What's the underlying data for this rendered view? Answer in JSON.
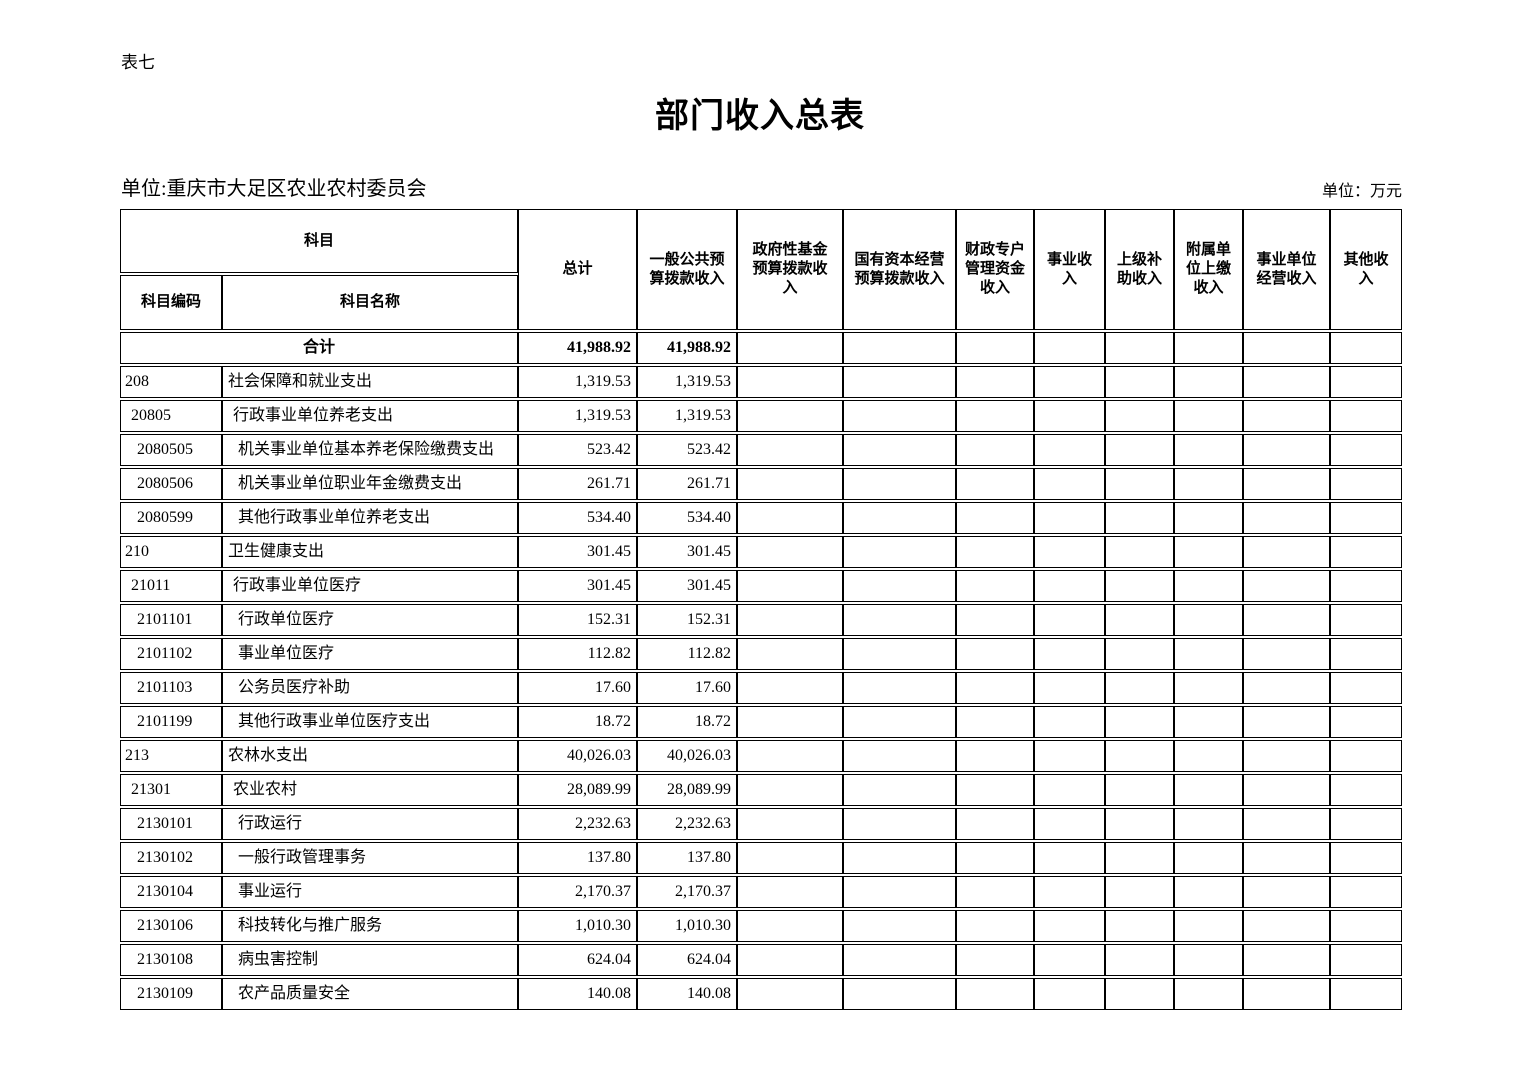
{
  "page": {
    "table_label": "表七",
    "title": "部门收入总表",
    "unit_left": "单位:重庆市大足区农业农村委员会",
    "unit_right": "单位：万元"
  },
  "table": {
    "header": {
      "subject": "科目",
      "subject_code": "科目编码",
      "subject_name": "科目名称",
      "total": "总计",
      "cols": [
        "一般公共预算拨款收入",
        "政府性基金预算拨款收入",
        "国有资本经营预算拨款收入",
        "财政专户管理资金收入",
        "事业收入",
        "上级补助收入",
        "附属单位上缴收入",
        "事业单位经营收入",
        "其他收入"
      ]
    },
    "total_row": {
      "label": "合计",
      "total": "41,988.92",
      "general_budget": "41,988.92"
    },
    "rows": [
      {
        "code": "208",
        "name": "社会保障和就业支出",
        "level": 0,
        "total": "1,319.53",
        "general_budget": "1,319.53"
      },
      {
        "code": "20805",
        "name": "行政事业单位养老支出",
        "level": 1,
        "total": "1,319.53",
        "general_budget": "1,319.53"
      },
      {
        "code": "2080505",
        "name": "机关事业单位基本养老保险缴费支出",
        "level": 2,
        "total": "523.42",
        "general_budget": "523.42"
      },
      {
        "code": "2080506",
        "name": "机关事业单位职业年金缴费支出",
        "level": 2,
        "total": "261.71",
        "general_budget": "261.71"
      },
      {
        "code": "2080599",
        "name": "其他行政事业单位养老支出",
        "level": 2,
        "total": "534.40",
        "general_budget": "534.40"
      },
      {
        "code": "210",
        "name": "卫生健康支出",
        "level": 0,
        "total": "301.45",
        "general_budget": "301.45"
      },
      {
        "code": "21011",
        "name": "行政事业单位医疗",
        "level": 1,
        "total": "301.45",
        "general_budget": "301.45"
      },
      {
        "code": "2101101",
        "name": "行政单位医疗",
        "level": 2,
        "total": "152.31",
        "general_budget": "152.31"
      },
      {
        "code": "2101102",
        "name": "事业单位医疗",
        "level": 2,
        "total": "112.82",
        "general_budget": "112.82"
      },
      {
        "code": "2101103",
        "name": "公务员医疗补助",
        "level": 2,
        "total": "17.60",
        "general_budget": "17.60"
      },
      {
        "code": "2101199",
        "name": "其他行政事业单位医疗支出",
        "level": 2,
        "total": "18.72",
        "general_budget": "18.72"
      },
      {
        "code": "213",
        "name": "农林水支出",
        "level": 0,
        "total": "40,026.03",
        "general_budget": "40,026.03"
      },
      {
        "code": "21301",
        "name": "农业农村",
        "level": 1,
        "total": "28,089.99",
        "general_budget": "28,089.99"
      },
      {
        "code": "2130101",
        "name": "行政运行",
        "level": 2,
        "total": "2,232.63",
        "general_budget": "2,232.63"
      },
      {
        "code": "2130102",
        "name": "一般行政管理事务",
        "level": 2,
        "total": "137.80",
        "general_budget": "137.80"
      },
      {
        "code": "2130104",
        "name": "事业运行",
        "level": 2,
        "total": "2,170.37",
        "general_budget": "2,170.37"
      },
      {
        "code": "2130106",
        "name": "科技转化与推广服务",
        "level": 2,
        "total": "1,010.30",
        "general_budget": "1,010.30"
      },
      {
        "code": "2130108",
        "name": "病虫害控制",
        "level": 2,
        "total": "624.04",
        "general_budget": "624.04"
      },
      {
        "code": "2130109",
        "name": "农产品质量安全",
        "level": 2,
        "total": "140.08",
        "general_budget": "140.08"
      }
    ]
  }
}
